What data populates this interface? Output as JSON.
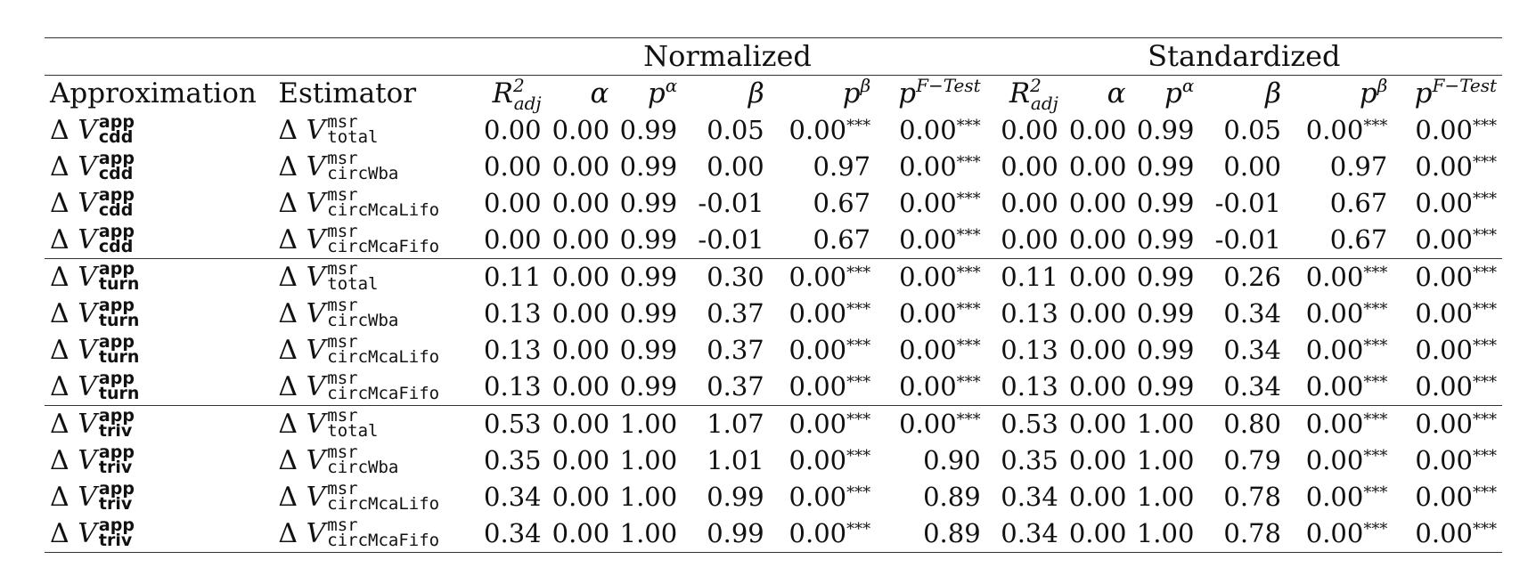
{
  "groups": {
    "normalized": "Normalized",
    "standardized": "Standardized"
  },
  "headers": {
    "approximation": "Approximation",
    "estimator": "Estimator",
    "r2_base": "R",
    "r2_sup": "2",
    "r2_sub": "adj",
    "alpha": "α",
    "p_base": "p",
    "alpha_sup": "α",
    "beta": "β",
    "beta_sup": "β",
    "ftest_sup": "F−Test"
  },
  "delta": "Δ",
  "var": "V",
  "sig": "***",
  "rows": [
    {
      "app_sup": "app",
      "app_sub": "cdd",
      "est_sup": "msr",
      "est_sub": "total",
      "n": [
        "0.00",
        "0.00",
        "0.99",
        "0.05",
        "0.00",
        "0.00"
      ],
      "s": [
        "0.00",
        "0.00",
        "0.99",
        "0.05",
        "0.00",
        "0.00"
      ],
      "nsig": [
        false,
        false,
        false,
        false,
        true,
        true
      ],
      "ssig": [
        false,
        false,
        false,
        false,
        true,
        true
      ]
    },
    {
      "app_sup": "app",
      "app_sub": "cdd",
      "est_sup": "msr",
      "est_sub": "circWba",
      "n": [
        "0.00",
        "0.00",
        "0.99",
        "0.00",
        "0.97",
        "0.00"
      ],
      "s": [
        "0.00",
        "0.00",
        "0.99",
        "0.00",
        "0.97",
        "0.00"
      ],
      "nsig": [
        false,
        false,
        false,
        false,
        false,
        true
      ],
      "ssig": [
        false,
        false,
        false,
        false,
        false,
        true
      ]
    },
    {
      "app_sup": "app",
      "app_sub": "cdd",
      "est_sup": "msr",
      "est_sub": "circMcaLifo",
      "n": [
        "0.00",
        "0.00",
        "0.99",
        "-0.01",
        "0.67",
        "0.00"
      ],
      "s": [
        "0.00",
        "0.00",
        "0.99",
        "-0.01",
        "0.67",
        "0.00"
      ],
      "nsig": [
        false,
        false,
        false,
        false,
        false,
        true
      ],
      "ssig": [
        false,
        false,
        false,
        false,
        false,
        true
      ]
    },
    {
      "app_sup": "app",
      "app_sub": "cdd",
      "est_sup": "msr",
      "est_sub": "circMcaFifo",
      "n": [
        "0.00",
        "0.00",
        "0.99",
        "-0.01",
        "0.67",
        "0.00"
      ],
      "s": [
        "0.00",
        "0.00",
        "0.99",
        "-0.01",
        "0.67",
        "0.00"
      ],
      "nsig": [
        false,
        false,
        false,
        false,
        false,
        true
      ],
      "ssig": [
        false,
        false,
        false,
        false,
        false,
        true
      ]
    },
    {
      "app_sup": "app",
      "app_sub": "turn",
      "est_sup": "msr",
      "est_sub": "total",
      "n": [
        "0.11",
        "0.00",
        "0.99",
        "0.30",
        "0.00",
        "0.00"
      ],
      "s": [
        "0.11",
        "0.00",
        "0.99",
        "0.26",
        "0.00",
        "0.00"
      ],
      "nsig": [
        false,
        false,
        false,
        false,
        true,
        true
      ],
      "ssig": [
        false,
        false,
        false,
        false,
        true,
        true
      ]
    },
    {
      "app_sup": "app",
      "app_sub": "turn",
      "est_sup": "msr",
      "est_sub": "circWba",
      "n": [
        "0.13",
        "0.00",
        "0.99",
        "0.37",
        "0.00",
        "0.00"
      ],
      "s": [
        "0.13",
        "0.00",
        "0.99",
        "0.34",
        "0.00",
        "0.00"
      ],
      "nsig": [
        false,
        false,
        false,
        false,
        true,
        true
      ],
      "ssig": [
        false,
        false,
        false,
        false,
        true,
        true
      ]
    },
    {
      "app_sup": "app",
      "app_sub": "turn",
      "est_sup": "msr",
      "est_sub": "circMcaLifo",
      "n": [
        "0.13",
        "0.00",
        "0.99",
        "0.37",
        "0.00",
        "0.00"
      ],
      "s": [
        "0.13",
        "0.00",
        "0.99",
        "0.34",
        "0.00",
        "0.00"
      ],
      "nsig": [
        false,
        false,
        false,
        false,
        true,
        true
      ],
      "ssig": [
        false,
        false,
        false,
        false,
        true,
        true
      ]
    },
    {
      "app_sup": "app",
      "app_sub": "turn",
      "est_sup": "msr",
      "est_sub": "circMcaFifo",
      "n": [
        "0.13",
        "0.00",
        "0.99",
        "0.37",
        "0.00",
        "0.00"
      ],
      "s": [
        "0.13",
        "0.00",
        "0.99",
        "0.34",
        "0.00",
        "0.00"
      ],
      "nsig": [
        false,
        false,
        false,
        false,
        true,
        true
      ],
      "ssig": [
        false,
        false,
        false,
        false,
        true,
        true
      ]
    },
    {
      "app_sup": "app",
      "app_sub": "triv",
      "est_sup": "msr",
      "est_sub": "total",
      "n": [
        "0.53",
        "0.00",
        "1.00",
        "1.07",
        "0.00",
        "0.00"
      ],
      "s": [
        "0.53",
        "0.00",
        "1.00",
        "0.80",
        "0.00",
        "0.00"
      ],
      "nsig": [
        false,
        false,
        false,
        false,
        true,
        true
      ],
      "ssig": [
        false,
        false,
        false,
        false,
        true,
        true
      ]
    },
    {
      "app_sup": "app",
      "app_sub": "triv",
      "est_sup": "msr",
      "est_sub": "circWba",
      "n": [
        "0.35",
        "0.00",
        "1.00",
        "1.01",
        "0.00",
        "0.90"
      ],
      "s": [
        "0.35",
        "0.00",
        "1.00",
        "0.79",
        "0.00",
        "0.00"
      ],
      "nsig": [
        false,
        false,
        false,
        false,
        true,
        false
      ],
      "ssig": [
        false,
        false,
        false,
        false,
        true,
        true
      ]
    },
    {
      "app_sup": "app",
      "app_sub": "triv",
      "est_sup": "msr",
      "est_sub": "circMcaLifo",
      "n": [
        "0.34",
        "0.00",
        "1.00",
        "0.99",
        "0.00",
        "0.89"
      ],
      "s": [
        "0.34",
        "0.00",
        "1.00",
        "0.78",
        "0.00",
        "0.00"
      ],
      "nsig": [
        false,
        false,
        false,
        false,
        true,
        false
      ],
      "ssig": [
        false,
        false,
        false,
        false,
        true,
        true
      ]
    },
    {
      "app_sup": "app",
      "app_sub": "triv",
      "est_sup": "msr",
      "est_sub": "circMcaFifo",
      "n": [
        "0.34",
        "0.00",
        "1.00",
        "0.99",
        "0.00",
        "0.89"
      ],
      "s": [
        "0.34",
        "0.00",
        "1.00",
        "0.78",
        "0.00",
        "0.00"
      ],
      "nsig": [
        false,
        false,
        false,
        false,
        true,
        false
      ],
      "ssig": [
        false,
        false,
        false,
        false,
        true,
        true
      ]
    }
  ]
}
